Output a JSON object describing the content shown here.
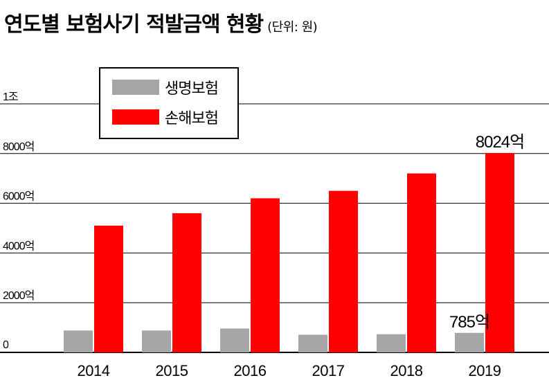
{
  "title": "연도별 보험사기 적발금액 현황",
  "unit_note": "(단위: 원)",
  "colors": {
    "life": "#a6a6a6",
    "nonlife": "#ff0000",
    "grid": "#000000"
  },
  "chart_data": {
    "type": "bar",
    "title": "연도별 보험사기 적발금액 현황",
    "unit": "원",
    "categories": [
      "2014",
      "2015",
      "2016",
      "2017",
      "2018",
      "2019"
    ],
    "series": [
      {
        "name": "생명보험",
        "color": "#a6a6a6",
        "values": [
          880,
          880,
          960,
          710,
          730,
          785
        ]
      },
      {
        "name": "손해보험",
        "color": "#ff0000",
        "values": [
          5100,
          5600,
          6200,
          6500,
          7200,
          8024
        ]
      }
    ],
    "ylim": [
      0,
      10000
    ],
    "yticks": [
      {
        "value": 0,
        "label": "0"
      },
      {
        "value": 2000,
        "label": "2000억"
      },
      {
        "value": 4000,
        "label": "4000억"
      },
      {
        "value": 6000,
        "label": "6000억"
      },
      {
        "value": 8000,
        "label": "8000억"
      },
      {
        "value": 10000,
        "label": "1조"
      }
    ],
    "grid": true,
    "legend_position": "top-left",
    "annotations": [
      {
        "series": 0,
        "index": 5,
        "text": "785억"
      },
      {
        "series": 1,
        "index": 5,
        "text": "8024억"
      }
    ]
  }
}
